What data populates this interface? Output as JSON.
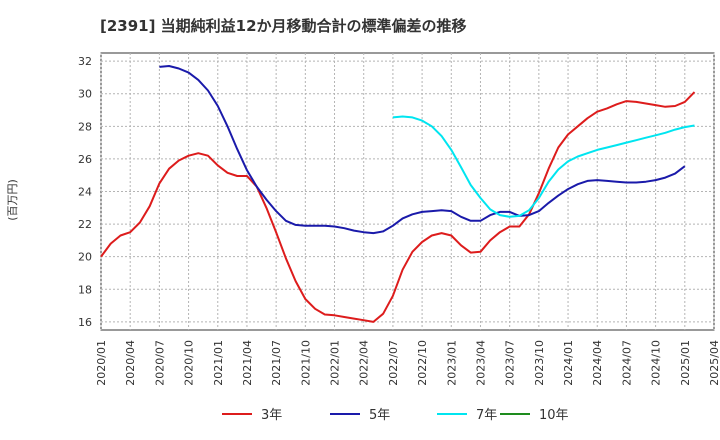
{
  "chart_data": {
    "type": "line",
    "title": "[2391]  当期純利益12か月移動合計の標準偏差の推移",
    "ylabel": "(百万円)",
    "xlabel": "",
    "ylim": [
      15.5,
      32.5
    ],
    "yticks": [
      16,
      18,
      20,
      22,
      24,
      26,
      28,
      30,
      32
    ],
    "xticks": [
      "2020/01",
      "2020/04",
      "2020/07",
      "2020/10",
      "2021/01",
      "2021/04",
      "2021/07",
      "2021/10",
      "2022/01",
      "2022/04",
      "2022/07",
      "2022/10",
      "2023/01",
      "2023/04",
      "2023/07",
      "2023/10",
      "2024/01",
      "2024/04",
      "2024/07",
      "2024/10",
      "2025/01",
      "2025/04"
    ],
    "grid": true,
    "legend_position": "bottom",
    "series": [
      {
        "name": "3年",
        "color": "#dd1c1c",
        "start": "2020/01",
        "values": [
          20.0,
          20.8,
          21.3,
          21.5,
          22.1,
          23.1,
          24.5,
          25.4,
          25.9,
          26.2,
          26.35,
          26.2,
          25.6,
          25.15,
          24.95,
          24.95,
          24.3,
          23.0,
          21.5,
          19.9,
          18.5,
          17.4,
          16.8,
          16.45,
          16.4,
          16.3,
          16.2,
          16.1,
          16.0,
          16.5,
          17.6,
          19.2,
          20.3,
          20.9,
          21.3,
          21.45,
          21.3,
          20.7,
          20.25,
          20.3,
          21.0,
          21.5,
          21.85,
          21.85,
          22.6,
          23.9,
          25.4,
          26.7,
          27.5,
          28.0,
          28.5,
          28.9,
          29.1,
          29.35,
          29.55,
          29.5,
          29.4,
          29.3,
          29.2,
          29.25,
          29.5,
          30.1
        ]
      },
      {
        "name": "5年",
        "color": "#1a1aaa",
        "start": "2020/07",
        "values": [
          31.65,
          31.7,
          31.55,
          31.3,
          30.85,
          30.2,
          29.25,
          28.0,
          26.6,
          25.3,
          24.3,
          23.5,
          22.8,
          22.2,
          21.95,
          21.9,
          21.9,
          21.9,
          21.85,
          21.75,
          21.6,
          21.5,
          21.45,
          21.55,
          21.9,
          22.35,
          22.6,
          22.75,
          22.8,
          22.85,
          22.8,
          22.45,
          22.2,
          22.2,
          22.55,
          22.75,
          22.75,
          22.5,
          22.55,
          22.8,
          23.3,
          23.75,
          24.15,
          24.45,
          24.65,
          24.7,
          24.65,
          24.6,
          24.55,
          24.55,
          24.6,
          24.7,
          24.85,
          25.1,
          25.55
        ]
      },
      {
        "name": "7年",
        "color": "#00e5f0",
        "start": "2022/07",
        "values": [
          28.55,
          28.6,
          28.55,
          28.35,
          28.0,
          27.4,
          26.55,
          25.5,
          24.4,
          23.6,
          22.9,
          22.55,
          22.45,
          22.5,
          22.85,
          23.6,
          24.6,
          25.35,
          25.85,
          26.15,
          26.35,
          26.55,
          26.7,
          26.85,
          27.0,
          27.15,
          27.3,
          27.45,
          27.6,
          27.8,
          27.95,
          28.05
        ]
      },
      {
        "name": "10年",
        "color": "#1e8c1e",
        "start": "2025/01",
        "values": []
      }
    ]
  }
}
